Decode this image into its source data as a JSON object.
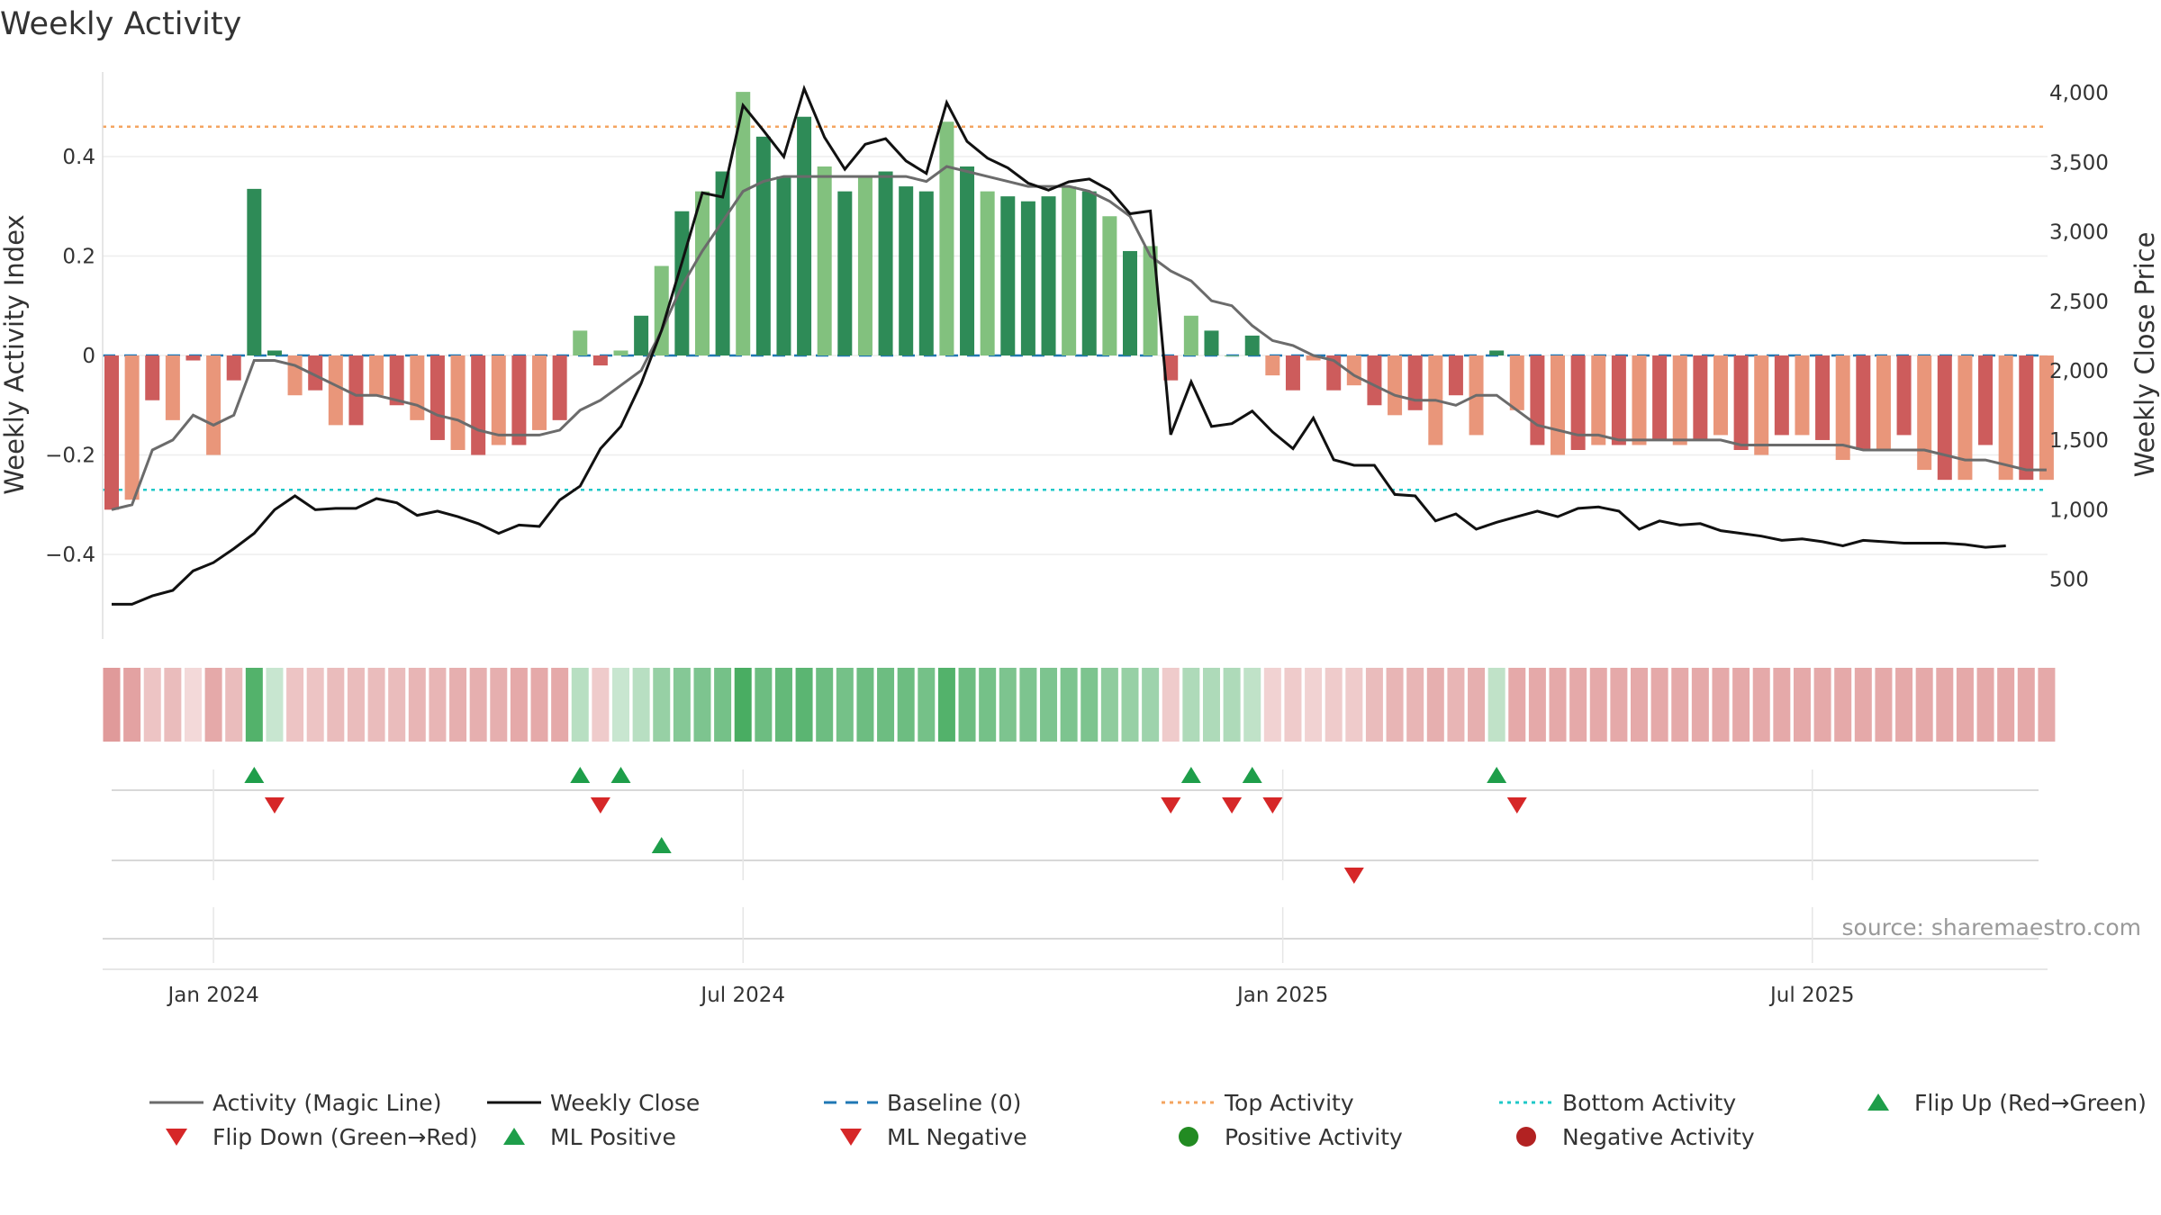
{
  "chart_data": {
    "type": "bar+line",
    "title": "Weekly Activity",
    "ylabel_left": "Weekly Activity Index",
    "ylabel_right": "Weekly Close Price",
    "ylim_left": [
      -0.57,
      0.57
    ],
    "ylim_right": [
      70,
      4150
    ],
    "yticks_left": [
      {
        "v": 0.4,
        "label": "0.4"
      },
      {
        "v": 0.2,
        "label": "0.2"
      },
      {
        "v": 0,
        "label": "0"
      },
      {
        "v": -0.2,
        "label": "−0.2"
      },
      {
        "v": -0.4,
        "label": "−0.4"
      }
    ],
    "yticks_right": [
      {
        "v": 4000,
        "label": "4,000"
      },
      {
        "v": 3500,
        "label": "3,500"
      },
      {
        "v": 3000,
        "label": "3,000"
      },
      {
        "v": 2500,
        "label": "2,500"
      },
      {
        "v": 2000,
        "label": "2,000"
      },
      {
        "v": 1500,
        "label": "1,500"
      },
      {
        "v": 1000,
        "label": "1,000"
      },
      {
        "v": 500,
        "label": "500"
      }
    ],
    "xticks": [
      {
        "week": 5,
        "label": "Jan 2024"
      },
      {
        "week": 31,
        "label": "Jul 2024"
      },
      {
        "week": 57.5,
        "label": "Jan 2025"
      },
      {
        "week": 83.5,
        "label": "Jul 2025"
      }
    ],
    "top_activity": 0.46,
    "bottom_activity": -0.27,
    "baseline": 0,
    "activity": [
      -0.31,
      -0.29,
      -0.09,
      -0.13,
      -0.01,
      -0.2,
      -0.05,
      0.335,
      0.01,
      -0.08,
      -0.07,
      -0.14,
      -0.14,
      -0.08,
      -0.1,
      -0.13,
      -0.17,
      -0.19,
      -0.2,
      -0.18,
      -0.18,
      -0.15,
      -0.13,
      0.05,
      -0.02,
      0.01,
      0.08,
      0.18,
      0.29,
      0.33,
      0.37,
      0.53,
      0.44,
      0.36,
      0.48,
      0.38,
      0.33,
      0.36,
      0.37,
      0.34,
      0.33,
      0.47,
      0.38,
      0.33,
      0.32,
      0.31,
      0.32,
      0.34,
      0.33,
      0.28,
      0.21,
      0.22,
      -0.05,
      0.08,
      0.05,
      0.0,
      0.04,
      -0.04,
      -0.07,
      -0.01,
      -0.07,
      -0.06,
      -0.1,
      -0.12,
      -0.11,
      -0.18,
      -0.08,
      -0.16,
      0.01,
      -0.11,
      -0.18,
      -0.2,
      -0.19,
      -0.18,
      -0.18,
      -0.18,
      -0.17,
      -0.18,
      -0.17,
      -0.16,
      -0.19,
      -0.2,
      -0.16,
      -0.16,
      -0.17,
      -0.21,
      -0.19,
      -0.19,
      -0.16,
      -0.23,
      -0.25,
      -0.25,
      -0.18,
      -0.25,
      -0.25,
      -0.25
    ],
    "magic_line": [
      -0.31,
      -0.3,
      -0.19,
      -0.17,
      -0.12,
      -0.14,
      -0.12,
      -0.01,
      -0.01,
      -0.02,
      -0.04,
      -0.06,
      -0.08,
      -0.08,
      -0.09,
      -0.1,
      -0.12,
      -0.13,
      -0.15,
      -0.16,
      -0.16,
      -0.16,
      -0.15,
      -0.11,
      -0.09,
      -0.06,
      -0.03,
      0.05,
      0.14,
      0.21,
      0.27,
      0.33,
      0.35,
      0.36,
      0.36,
      0.36,
      0.36,
      0.36,
      0.36,
      0.36,
      0.35,
      0.38,
      0.37,
      0.36,
      0.35,
      0.34,
      0.34,
      0.34,
      0.33,
      0.31,
      0.28,
      0.2,
      0.17,
      0.15,
      0.11,
      0.1,
      0.06,
      0.03,
      0.02,
      0.0,
      -0.01,
      -0.04,
      -0.06,
      -0.08,
      -0.09,
      -0.09,
      -0.1,
      -0.08,
      -0.08,
      -0.11,
      -0.14,
      -0.15,
      -0.16,
      -0.16,
      -0.17,
      -0.17,
      -0.17,
      -0.17,
      -0.17,
      -0.17,
      -0.18,
      -0.18,
      -0.18,
      -0.18,
      -0.18,
      -0.18,
      -0.19,
      -0.19,
      -0.19,
      -0.19,
      -0.2,
      -0.21,
      -0.21,
      -0.22,
      -0.23,
      -0.23
    ],
    "close": [
      320,
      320,
      380,
      420,
      560,
      620,
      720,
      830,
      1000,
      1100,
      1000,
      1010,
      1010,
      1080,
      1050,
      960,
      990,
      950,
      900,
      830,
      890,
      880,
      1070,
      1170,
      1440,
      1600,
      1910,
      2290,
      2780,
      3280,
      3250,
      3910,
      3730,
      3540,
      4030,
      3680,
      3450,
      3630,
      3670,
      3510,
      3420,
      3930,
      3650,
      3530,
      3460,
      3350,
      3300,
      3360,
      3380,
      3300,
      3130,
      3150,
      1540,
      1920,
      1600,
      1620,
      1710,
      1560,
      1440,
      1660,
      1360,
      1320,
      1320,
      1110,
      1100,
      920,
      970,
      860,
      910,
      950,
      990,
      950,
      1010,
      1020,
      990,
      860,
      920,
      890,
      900,
      850,
      830,
      810,
      780,
      790,
      770,
      740,
      780,
      770,
      760,
      760,
      760,
      750,
      730,
      740
    ],
    "ribbon_strength": [
      0.55,
      0.5,
      0.25,
      0.3,
      0.1,
      0.45,
      0.3,
      0.85,
      0.15,
      0.25,
      0.25,
      0.3,
      0.3,
      0.3,
      0.3,
      0.35,
      0.35,
      0.4,
      0.4,
      0.4,
      0.45,
      0.45,
      0.45,
      0.25,
      0.2,
      0.15,
      0.25,
      0.45,
      0.55,
      0.6,
      0.65,
      0.9,
      0.7,
      0.75,
      0.8,
      0.7,
      0.65,
      0.7,
      0.7,
      0.7,
      0.65,
      0.85,
      0.7,
      0.65,
      0.6,
      0.6,
      0.6,
      0.6,
      0.6,
      0.5,
      0.45,
      0.4,
      0.2,
      0.3,
      0.3,
      0.3,
      0.2,
      0.15,
      0.2,
      0.15,
      0.2,
      0.2,
      0.3,
      0.35,
      0.35,
      0.4,
      0.35,
      0.4,
      0.2,
      0.45,
      0.45,
      0.45,
      0.45,
      0.45,
      0.45,
      0.45,
      0.45,
      0.45,
      0.45,
      0.45,
      0.45,
      0.45,
      0.45,
      0.45,
      0.45,
      0.45,
      0.45,
      0.45,
      0.45,
      0.45,
      0.45,
      0.45,
      0.45,
      0.45,
      0.45,
      0.45
    ],
    "flip_up_weeks": [
      7,
      23,
      25,
      53,
      56,
      68
    ],
    "flip_down_weeks": [
      8,
      24,
      52,
      55,
      57,
      69
    ],
    "ml_positive_weeks": [
      27
    ],
    "ml_negative_weeks": [
      61
    ],
    "colors": {
      "dark_green": "#2e8b57",
      "light_green": "#82c17e",
      "dark_red": "#cd5c5c",
      "light_red": "#e9967a",
      "magic_line": "#6b6b6b",
      "close_line": "#111111",
      "baseline": "#1f77b4",
      "top": "#f4a460",
      "bottom": "#20c8c8",
      "marker_green": "#1e9e4a",
      "marker_red": "#d62728",
      "dot_green": "#228b22",
      "dot_red": "#b22222",
      "ribbon_green": "#3aa655",
      "ribbon_red": "#cd5c5c"
    }
  },
  "legend": [
    {
      "label": "Activity (Magic Line)",
      "icon": "line-icon",
      "color": "#6b6b6b"
    },
    {
      "label": "Weekly Close",
      "icon": "line-icon",
      "color": "#111111"
    },
    {
      "label": "Baseline (0)",
      "icon": "dashed-line-icon",
      "color": "#1f77b4"
    },
    {
      "label": "Top Activity",
      "icon": "dotted-line-icon",
      "color": "#f4a460"
    },
    {
      "label": "Bottom Activity",
      "icon": "dotted-line-icon",
      "color": "#20c8c8"
    },
    {
      "label": "Flip Up (Red→Green)",
      "icon": "triangle-up-icon",
      "color": "#1e9e4a"
    },
    {
      "label": "Flip Down (Green→Red)",
      "icon": "triangle-down-icon",
      "color": "#d62728"
    },
    {
      "label": "ML Positive",
      "icon": "triangle-up-icon",
      "color": "#1e9e4a"
    },
    {
      "label": "ML Negative",
      "icon": "triangle-down-icon",
      "color": "#d62728"
    },
    {
      "label": "Positive Activity",
      "icon": "circle-icon",
      "color": "#228b22"
    },
    {
      "label": "Negative Activity",
      "icon": "circle-icon",
      "color": "#b22222"
    }
  ],
  "source": "source: sharemaestro.com"
}
